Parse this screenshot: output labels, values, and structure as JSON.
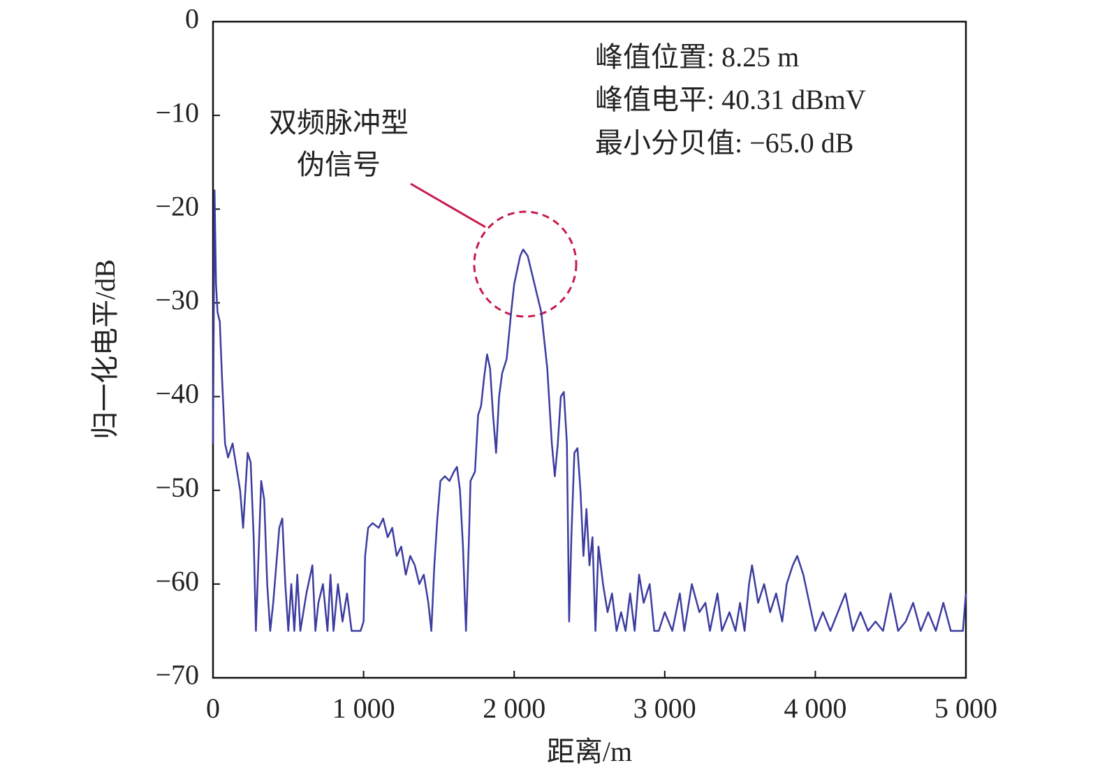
{
  "chart_data": {
    "type": "line",
    "xlabel": "距离/m",
    "ylabel": "归一化电平/dB",
    "annotations": [
      "峰值位置: 8.25 m",
      "峰值电平: 40.31 dBmV",
      "最小分贝值: −65.0 dB"
    ],
    "callout": [
      "双频脉冲型",
      "伪信号"
    ],
    "color": "#3c3ca0",
    "xlim": [
      0,
      5000
    ],
    "ylim": [
      -70,
      0
    ],
    "xticks": [
      0,
      {
        "value": 1000,
        "label": "1 000"
      },
      {
        "value": 2000,
        "label": "2 000"
      },
      {
        "value": 3000,
        "label": "3 000"
      },
      {
        "value": 4000,
        "label": "4 000"
      },
      {
        "value": 5000,
        "label": "5 000"
      }
    ],
    "yticks": [
      0,
      {
        "value": -10,
        "label": "−10"
      },
      {
        "value": -20,
        "label": "−20"
      },
      {
        "value": -30,
        "label": "−30"
      },
      {
        "value": -40,
        "label": "−40"
      },
      {
        "value": -50,
        "label": "−50"
      },
      {
        "value": -60,
        "label": "−60"
      },
      {
        "value": -70,
        "label": "−70"
      }
    ],
    "x": [
      0,
      10,
      20,
      30,
      45,
      60,
      80,
      100,
      130,
      160,
      180,
      200,
      230,
      250,
      270,
      285,
      300,
      320,
      340,
      360,
      380,
      400,
      440,
      460,
      480,
      500,
      520,
      540,
      560,
      580,
      620,
      660,
      680,
      700,
      730,
      760,
      780,
      800,
      830,
      860,
      890,
      920,
      950,
      980,
      1000,
      1010,
      1030,
      1060,
      1100,
      1130,
      1160,
      1190,
      1220,
      1250,
      1280,
      1310,
      1340,
      1370,
      1400,
      1430,
      1450,
      1470,
      1490,
      1510,
      1540,
      1570,
      1600,
      1620,
      1640,
      1660,
      1680,
      1700,
      1710,
      1740,
      1760,
      1780,
      1800,
      1820,
      1840,
      1860,
      1880,
      1900,
      1920,
      1950,
      1980,
      2000,
      2040,
      2060,
      2090,
      2120,
      2150,
      2180,
      2220,
      2250,
      2270,
      2290,
      2310,
      2330,
      2350,
      2365,
      2380,
      2400,
      2420,
      2440,
      2460,
      2480,
      2500,
      2520,
      2540,
      2560,
      2590,
      2620,
      2650,
      2680,
      2710,
      2740,
      2770,
      2800,
      2830,
      2860,
      2900,
      2930,
      2960,
      3000,
      3050,
      3100,
      3130,
      3180,
      3230,
      3270,
      3300,
      3350,
      3380,
      3430,
      3470,
      3500,
      3530,
      3560,
      3580,
      3620,
      3660,
      3700,
      3740,
      3780,
      3810,
      3850,
      3880,
      3920,
      3960,
      4000,
      4050,
      4100,
      4150,
      4200,
      4250,
      4300,
      4350,
      4400,
      4450,
      4500,
      4550,
      4600,
      4650,
      4700,
      4750,
      4800,
      4850,
      4900,
      4950,
      4980,
      5000
    ],
    "values": [
      -45,
      -18,
      -28,
      -31,
      -32,
      -38,
      -45,
      -46.5,
      -45,
      -48,
      -50,
      -54,
      -46,
      -47,
      -55,
      -65,
      -58,
      -49,
      -51,
      -60,
      -65,
      -62,
      -54,
      -53,
      -60,
      -65,
      -60,
      -65,
      -59,
      -65,
      -61,
      -58,
      -65,
      -62,
      -60,
      -65,
      -59,
      -65,
      -60,
      -64,
      -61,
      -65,
      -65,
      -65,
      -64,
      -57,
      -54,
      -53.5,
      -54,
      -53,
      -55,
      -54,
      -57,
      -56,
      -59,
      -57,
      -58,
      -60,
      -59,
      -62,
      -65,
      -58,
      -53,
      -49,
      -48.5,
      -49,
      -48,
      -47.5,
      -50,
      -56,
      -65,
      -55,
      -49,
      -48,
      -42,
      -41,
      -38,
      -35.5,
      -37,
      -42,
      -46,
      -40,
      -37.5,
      -36,
      -31,
      -28,
      -25,
      -24.3,
      -25,
      -27,
      -29,
      -31,
      -37,
      -45,
      -48.5,
      -45,
      -40,
      -39.5,
      -45,
      -64,
      -55,
      -46,
      -45.5,
      -50,
      -57,
      -52,
      -58,
      -55,
      -65,
      -56,
      -60,
      -63,
      -61,
      -65,
      -63,
      -65,
      -61,
      -65,
      -59,
      -62,
      -60,
      -65,
      -65,
      -63,
      -65,
      -61,
      -65,
      -60,
      -63,
      -62,
      -65,
      -61,
      -65,
      -63,
      -65,
      -62,
      -65,
      -60,
      -58,
      -62,
      -60,
      -63,
      -61,
      -64,
      -60,
      -58,
      -57,
      -59,
      -62,
      -65,
      -63,
      -65,
      -63,
      -61,
      -65,
      -63,
      -65,
      -64,
      -65,
      -61,
      -65,
      -64,
      -62,
      -65,
      -63,
      -65,
      -62,
      -65,
      -65,
      -65,
      -61
    ]
  }
}
